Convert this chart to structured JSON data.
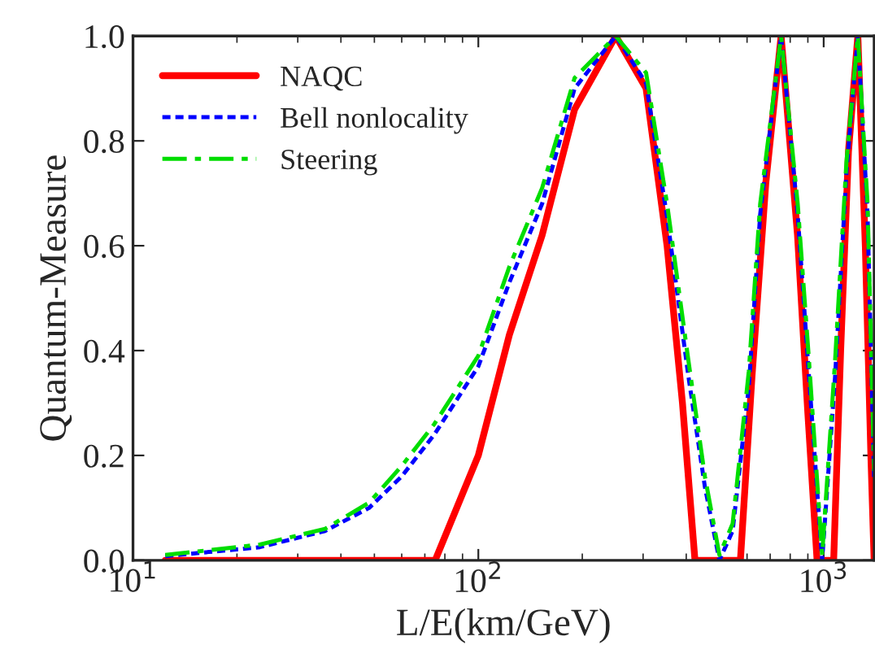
{
  "chart_data": {
    "type": "line",
    "xlabel": "L/E(km/GeV)",
    "ylabel": "Quantum-Measure",
    "log": "x",
    "xlim": [
      10,
      1400
    ],
    "xticks": [
      {
        "value": 10,
        "label": "10$^{1}$"
      },
      {
        "value": 100,
        "label": "10$^{2}$"
      },
      {
        "value": 1000,
        "label": "10$^{3}$"
      }
    ],
    "ylim": [
      0,
      1
    ],
    "yticks": [
      {
        "value": 0,
        "label": "0.0"
      },
      {
        "value": 0.2,
        "label": "0.2"
      },
      {
        "value": 0.4,
        "label": "0.4"
      },
      {
        "value": 0.6,
        "label": "0.6"
      },
      {
        "value": 0.8,
        "label": "0.8"
      },
      {
        "value": 1,
        "label": "1.0"
      }
    ],
    "grid": false,
    "legend": "top left",
    "marker": "none",
    "series": [
      {
        "name": "NAQC",
        "color": "#ff0000",
        "line_style": "solid",
        "x": [
          12.4,
          40,
          75,
          100,
          123,
          153,
          190,
          250,
          306,
          352,
          390,
          424,
          480,
          540,
          574,
          620,
          680,
          753,
          840,
          900,
          957,
          1010,
          1069,
          1120,
          1180,
          1256,
          1320,
          1370,
          1400
        ],
        "values": [
          0,
          0,
          0,
          0.2,
          0.43,
          0.62,
          0.86,
          1,
          0.9,
          0.6,
          0.3,
          0,
          0,
          0,
          0,
          0.35,
          0.72,
          1,
          0.62,
          0.28,
          0,
          0,
          0,
          0.4,
          0.78,
          1,
          0.6,
          0.2,
          0
        ]
      },
      {
        "name": "Bell nonlocality",
        "color": "#0000ff",
        "line_style": "dotted",
        "x": [
          12.4,
          23.3,
          36,
          48.3,
          60,
          74.6,
          100,
          123,
          153,
          190,
          250,
          306,
          352,
          406,
          453,
          499,
          545,
          607,
          655,
          753,
          841,
          907,
          990,
          1079,
          1164,
          1256,
          1340,
          1400
        ],
        "values": [
          0.008,
          0.025,
          0.056,
          0.1,
          0.16,
          0.24,
          0.37,
          0.53,
          0.68,
          0.9,
          1,
          0.91,
          0.655,
          0.35,
          0.14,
          0,
          0.056,
          0.33,
          0.66,
          1,
          0.66,
          0.35,
          0,
          0.35,
          0.74,
          1,
          0.66,
          0.15
        ]
      },
      {
        "name": "Steering",
        "color": "#00dd00",
        "line_style": "dashdot",
        "x": [
          12.4,
          23.3,
          36,
          48.3,
          60,
          74.6,
          100,
          123,
          153,
          190,
          250,
          306,
          352,
          406,
          453,
          499,
          545,
          607,
          655,
          753,
          841,
          907,
          990,
          1079,
          1164,
          1256,
          1340,
          1400
        ],
        "values": [
          0.01,
          0.03,
          0.06,
          0.11,
          0.18,
          0.26,
          0.39,
          0.56,
          0.71,
          0.92,
          1,
          0.93,
          0.68,
          0.38,
          0.16,
          0.01,
          0.07,
          0.36,
          0.68,
          1,
          0.68,
          0.38,
          0.01,
          0.38,
          0.76,
          1,
          0.68,
          0.17
        ]
      }
    ]
  }
}
